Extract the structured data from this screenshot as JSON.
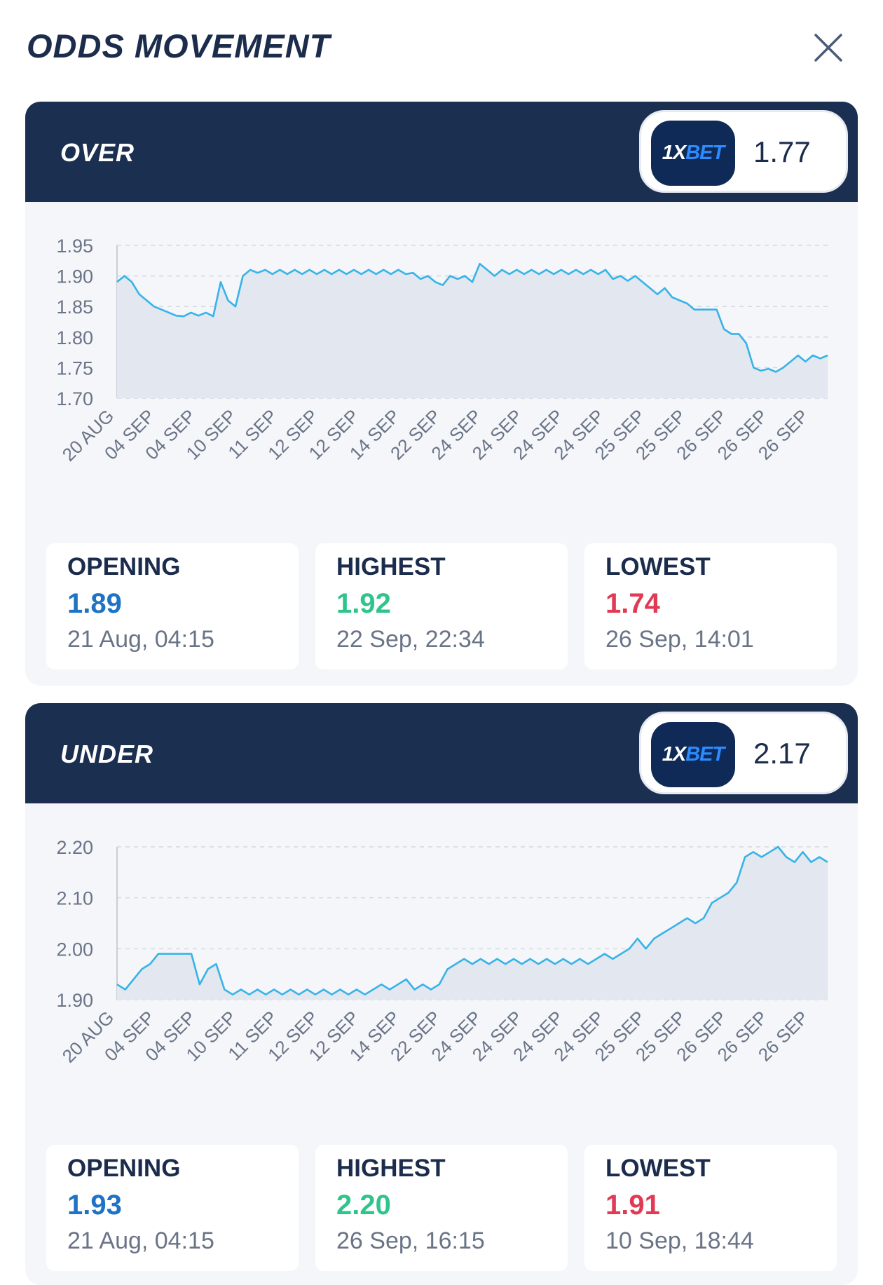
{
  "header": {
    "title": "ODDS MOVEMENT"
  },
  "colors": {
    "navy": "#1b2f51",
    "line": "#37b3e8",
    "opening": "#1e73c4",
    "highest": "#2fc48a",
    "lowest": "#e03a55"
  },
  "icons": {
    "close": "close-icon"
  },
  "markets": [
    {
      "name": "OVER",
      "bookmaker": {
        "logo_main": "1X",
        "logo_accent": "BET"
      },
      "current_odds": "1.77",
      "stats": {
        "opening": {
          "label": "OPENING",
          "value": "1.89",
          "date": "21 Aug, 04:15"
        },
        "highest": {
          "label": "HIGHEST",
          "value": "1.92",
          "date": "22 Sep, 22:34"
        },
        "lowest": {
          "label": "LOWEST",
          "value": "1.74",
          "date": "26 Sep, 14:01"
        }
      }
    },
    {
      "name": "UNDER",
      "bookmaker": {
        "logo_main": "1X",
        "logo_accent": "BET"
      },
      "current_odds": "2.17",
      "stats": {
        "opening": {
          "label": "OPENING",
          "value": "1.93",
          "date": "21 Aug, 04:15"
        },
        "highest": {
          "label": "HIGHEST",
          "value": "2.20",
          "date": "26 Sep, 16:15"
        },
        "lowest": {
          "label": "LOWEST",
          "value": "1.91",
          "date": "10 Sep, 18:44"
        }
      }
    }
  ],
  "chart_data": [
    {
      "type": "line",
      "ylim": [
        1.7,
        1.95
      ],
      "yticks": [
        "1.95",
        "1.90",
        "1.85",
        "1.80",
        "1.75",
        "1.70"
      ],
      "x_tick_labels": [
        "20 AUG",
        "04 SEP",
        "04 SEP",
        "10 SEP",
        "11 SEP",
        "12 SEP",
        "12 SEP",
        "14 SEP",
        "22 SEP",
        "24 SEP",
        "24 SEP",
        "24 SEP",
        "24 SEP",
        "25 SEP",
        "25 SEP",
        "26 SEP",
        "26 SEP",
        "26 SEP"
      ],
      "grid": true,
      "values": [
        1.89,
        1.9,
        1.89,
        1.87,
        1.86,
        1.85,
        1.845,
        1.84,
        1.835,
        1.834,
        1.84,
        1.835,
        1.84,
        1.834,
        1.89,
        1.86,
        1.85,
        1.9,
        1.91,
        1.905,
        1.91,
        1.903,
        1.91,
        1.903,
        1.91,
        1.903,
        1.91,
        1.903,
        1.91,
        1.903,
        1.91,
        1.903,
        1.91,
        1.903,
        1.91,
        1.903,
        1.91,
        1.903,
        1.91,
        1.903,
        1.905,
        1.895,
        1.9,
        1.89,
        1.885,
        1.9,
        1.895,
        1.9,
        1.89,
        1.92,
        1.91,
        1.9,
        1.91,
        1.903,
        1.91,
        1.903,
        1.91,
        1.903,
        1.91,
        1.903,
        1.91,
        1.903,
        1.91,
        1.903,
        1.91,
        1.903,
        1.91,
        1.895,
        1.9,
        1.892,
        1.9,
        1.89,
        1.88,
        1.87,
        1.88,
        1.865,
        1.86,
        1.855,
        1.845,
        1.845,
        1.845,
        1.845,
        1.813,
        1.805,
        1.805,
        1.79,
        1.75,
        1.745,
        1.748,
        1.743,
        1.75,
        1.76,
        1.77,
        1.76,
        1.77,
        1.765,
        1.77
      ]
    },
    {
      "type": "line",
      "ylim": [
        1.9,
        2.2
      ],
      "yticks": [
        "2.20",
        "2.10",
        "2.00",
        "1.90"
      ],
      "x_tick_labels": [
        "20 AUG",
        "04 SEP",
        "04 SEP",
        "10 SEP",
        "11 SEP",
        "12 SEP",
        "12 SEP",
        "14 SEP",
        "22 SEP",
        "24 SEP",
        "24 SEP",
        "24 SEP",
        "24 SEP",
        "25 SEP",
        "25 SEP",
        "26 SEP",
        "26 SEP",
        "26 SEP"
      ],
      "grid": true,
      "values": [
        1.93,
        1.92,
        1.94,
        1.96,
        1.97,
        1.99,
        1.99,
        1.99,
        1.99,
        1.99,
        1.93,
        1.96,
        1.97,
        1.92,
        1.91,
        1.92,
        1.91,
        1.92,
        1.91,
        1.92,
        1.91,
        1.92,
        1.91,
        1.92,
        1.91,
        1.92,
        1.91,
        1.92,
        1.91,
        1.92,
        1.91,
        1.92,
        1.93,
        1.92,
        1.93,
        1.94,
        1.92,
        1.93,
        1.92,
        1.93,
        1.96,
        1.97,
        1.98,
        1.97,
        1.98,
        1.97,
        1.98,
        1.97,
        1.98,
        1.97,
        1.98,
        1.97,
        1.98,
        1.97,
        1.98,
        1.97,
        1.98,
        1.97,
        1.98,
        1.99,
        1.98,
        1.99,
        2.0,
        2.02,
        2.0,
        2.02,
        2.03,
        2.04,
        2.05,
        2.06,
        2.05,
        2.06,
        2.09,
        2.1,
        2.11,
        2.13,
        2.18,
        2.19,
        2.18,
        2.19,
        2.2,
        2.18,
        2.17,
        2.19,
        2.17,
        2.18,
        2.17
      ]
    }
  ]
}
